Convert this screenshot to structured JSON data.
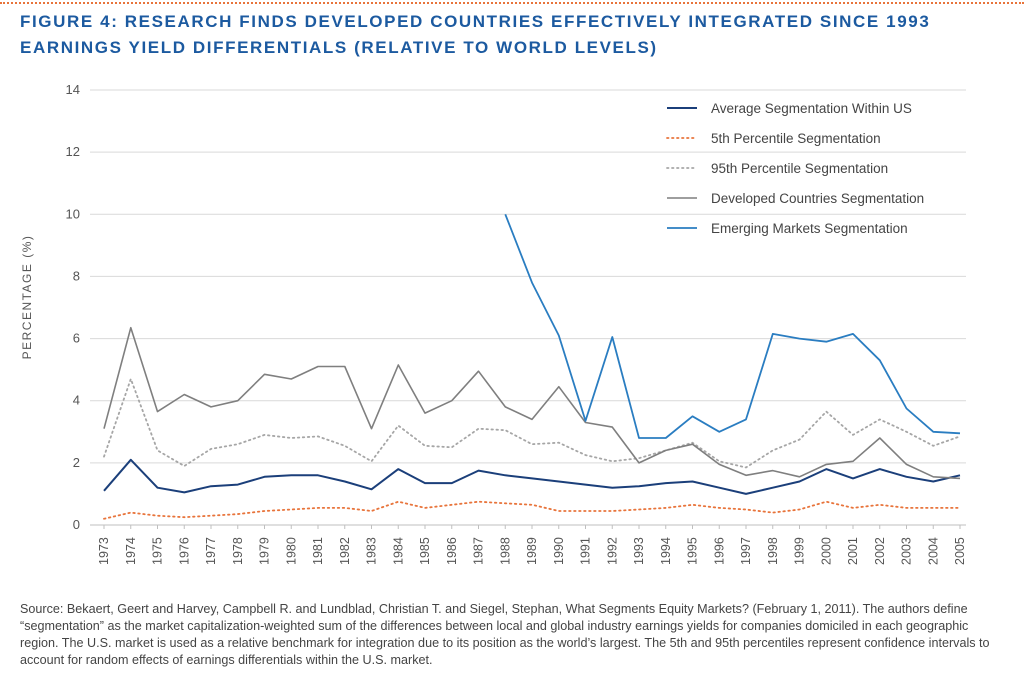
{
  "header": {
    "title_line1": "FIGURE 4: RESEARCH FINDS DEVELOPED COUNTRIES EFFECTIVELY INTEGRATED SINCE 1993",
    "title_line2": "EARNINGS YIELD DIFFERENTIALS (RELATIVE TO WORLD LEVELS)"
  },
  "colors": {
    "title": "#1c5aa0",
    "us": "#1b3f7a",
    "p5": "#e8743b",
    "p95": "#a6a6a6",
    "developed": "#7f7f7f",
    "emerging": "#2a7dc1",
    "grid": "#d9d9d9"
  },
  "chart_data": {
    "type": "line",
    "title": "",
    "xlabel": "",
    "ylabel": "PERCENTAGE (%)",
    "ylim": [
      0,
      14
    ],
    "yticks": [
      0,
      2,
      4,
      6,
      8,
      10,
      12,
      14
    ],
    "grid": "horizontal",
    "legend_position": "top-right",
    "x": [
      "1973",
      "1974",
      "1975",
      "1976",
      "1977",
      "1978",
      "1979",
      "1980",
      "1981",
      "1982",
      "1983",
      "1984",
      "1985",
      "1986",
      "1987",
      "1988",
      "1989",
      "1990",
      "1991",
      "1992",
      "1993",
      "1994",
      "1995",
      "1996",
      "1997",
      "1998",
      "1999",
      "2000",
      "2001",
      "2002",
      "2003",
      "2004",
      "2005"
    ],
    "series": [
      {
        "name": "Average Segmentation Within US",
        "style": "solid",
        "values": [
          1.1,
          2.1,
          1.2,
          1.05,
          1.25,
          1.3,
          1.55,
          1.6,
          1.6,
          1.4,
          1.15,
          1.8,
          1.35,
          1.35,
          1.75,
          1.6,
          1.5,
          1.4,
          1.3,
          1.2,
          1.25,
          1.35,
          1.4,
          1.2,
          1.0,
          1.2,
          1.4,
          1.8,
          1.5,
          1.8,
          1.55,
          1.4,
          1.6
        ]
      },
      {
        "name": "5th Percentile Segmentation",
        "style": "dotted",
        "values": [
          0.2,
          0.4,
          0.3,
          0.25,
          0.3,
          0.35,
          0.45,
          0.5,
          0.55,
          0.55,
          0.45,
          0.75,
          0.55,
          0.65,
          0.75,
          0.7,
          0.65,
          0.45,
          0.45,
          0.45,
          0.5,
          0.55,
          0.65,
          0.55,
          0.5,
          0.4,
          0.5,
          0.75,
          0.55,
          0.65,
          0.55,
          0.55,
          0.55
        ]
      },
      {
        "name": "95th Percentile Segmentation",
        "style": "dotted",
        "values": [
          2.2,
          4.7,
          2.4,
          1.9,
          2.45,
          2.6,
          2.9,
          2.8,
          2.85,
          2.55,
          2.05,
          3.2,
          2.55,
          2.5,
          3.1,
          3.05,
          2.6,
          2.65,
          2.25,
          2.05,
          2.15,
          2.4,
          2.65,
          2.05,
          1.85,
          2.4,
          2.75,
          3.65,
          2.9,
          3.4,
          3.0,
          2.55,
          2.85
        ]
      },
      {
        "name": "Developed Countries Segmentation",
        "style": "solid",
        "values": [
          3.1,
          6.35,
          3.65,
          4.2,
          3.8,
          4.0,
          4.85,
          4.7,
          5.1,
          5.1,
          3.1,
          5.15,
          3.6,
          4.0,
          4.95,
          3.8,
          3.4,
          4.45,
          3.3,
          3.15,
          2.0,
          2.4,
          2.6,
          1.95,
          1.6,
          1.75,
          1.55,
          1.95,
          2.05,
          2.8,
          1.95,
          1.55,
          1.5
        ]
      },
      {
        "name": "Emerging Markets Segmentation",
        "style": "solid",
        "values": [
          null,
          null,
          null,
          null,
          null,
          null,
          null,
          null,
          null,
          null,
          null,
          null,
          null,
          null,
          null,
          10.0,
          7.8,
          6.1,
          3.35,
          6.05,
          2.8,
          2.8,
          3.5,
          3.0,
          3.4,
          6.15,
          6.0,
          5.9,
          6.15,
          5.3,
          3.75,
          3.0,
          2.95
        ]
      }
    ]
  },
  "footnote": {
    "text": "Source: Bekaert, Geert and Harvey, Campbell R. and Lundblad, Christian T. and Siegel, Stephan, What Segments Equity Markets? (February 1, 2011). The authors define “segmentation” as the market capitalization-weighted sum of the differences between local and global industry earnings yields for companies domiciled in each geographic region. The U.S. market is used as a relative benchmark for integration due to its position as the world’s largest. The 5th and 95th percentiles represent confidence intervals to account for random effects of earnings differentials within the U.S. market."
  }
}
